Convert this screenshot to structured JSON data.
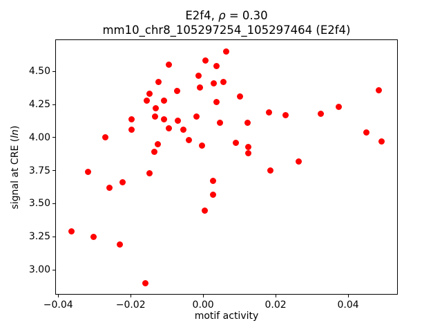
{
  "chart_data": {
    "type": "scatter",
    "title": "E2f4, ρ = 0.30",
    "title_parts": {
      "prefix": "E2f4, ",
      "rho": "ρ",
      "suffix": " = 0.30"
    },
    "subtitle": "mm10_chr8_105297254_105297464 (E2f4)",
    "xlabel": "motif activity",
    "ylabel": "signal at CRE (ln)",
    "ylabel_parts": {
      "prefix": "signal at CRE (",
      "italic": "ln",
      "suffix": ")"
    },
    "marker_color": "#ff0000",
    "axis_color": "#000000",
    "grid": false,
    "legend": false,
    "xlim": [
      -0.0408,
      0.0537
    ],
    "ylim": [
      2.812,
      4.742
    ],
    "x_ticks": [
      -0.04,
      -0.02,
      0.0,
      0.02,
      0.04
    ],
    "x_tick_labels": [
      "−0.04",
      "−0.02",
      "0.00",
      "0.02",
      "0.04"
    ],
    "y_ticks": [
      3.0,
      3.25,
      3.5,
      3.75,
      4.0,
      4.25,
      4.5
    ],
    "y_tick_labels": [
      "3.00",
      "3.25",
      "3.50",
      "3.75",
      "4.00",
      "4.25",
      "4.50"
    ],
    "points": [
      [
        -0.0364,
        3.29
      ],
      [
        -0.0318,
        3.74
      ],
      [
        -0.0303,
        3.25
      ],
      [
        -0.027,
        4.0
      ],
      [
        -0.0259,
        3.62
      ],
      [
        -0.023,
        3.19
      ],
      [
        -0.0223,
        3.66
      ],
      [
        -0.0198,
        4.14
      ],
      [
        -0.0198,
        4.06
      ],
      [
        -0.016,
        2.9
      ],
      [
        -0.0156,
        4.28
      ],
      [
        -0.0147,
        4.33
      ],
      [
        -0.0147,
        3.73
      ],
      [
        -0.0135,
        3.89
      ],
      [
        -0.0133,
        4.16
      ],
      [
        -0.013,
        4.22
      ],
      [
        -0.0126,
        3.95
      ],
      [
        -0.0124,
        4.42
      ],
      [
        -0.0107,
        4.28
      ],
      [
        -0.0107,
        4.14
      ],
      [
        -0.0095,
        4.55
      ],
      [
        -0.0095,
        4.07
      ],
      [
        -0.0072,
        4.35
      ],
      [
        -0.007,
        4.13
      ],
      [
        -0.0055,
        4.06
      ],
      [
        -0.004,
        3.98
      ],
      [
        -0.0019,
        4.16
      ],
      [
        -0.0013,
        4.47
      ],
      [
        -0.0008,
        4.38
      ],
      [
        -0.0004,
        3.94
      ],
      [
        0.0004,
        3.45
      ],
      [
        0.0006,
        4.58
      ],
      [
        0.0027,
        3.67
      ],
      [
        0.0027,
        3.57
      ],
      [
        0.003,
        4.41
      ],
      [
        0.0036,
        4.54
      ],
      [
        0.0036,
        4.27
      ],
      [
        0.0046,
        4.11
      ],
      [
        0.0055,
        4.42
      ],
      [
        0.0063,
        4.65
      ],
      [
        0.0091,
        3.96
      ],
      [
        0.0101,
        4.31
      ],
      [
        0.0122,
        4.11
      ],
      [
        0.0124,
        3.93
      ],
      [
        0.0124,
        3.88
      ],
      [
        0.0181,
        4.19
      ],
      [
        0.0185,
        3.75
      ],
      [
        0.0227,
        4.17
      ],
      [
        0.0263,
        3.82
      ],
      [
        0.0324,
        4.18
      ],
      [
        0.0375,
        4.23
      ],
      [
        0.045,
        4.04
      ],
      [
        0.0484,
        4.36
      ],
      [
        0.0493,
        3.97
      ]
    ]
  }
}
